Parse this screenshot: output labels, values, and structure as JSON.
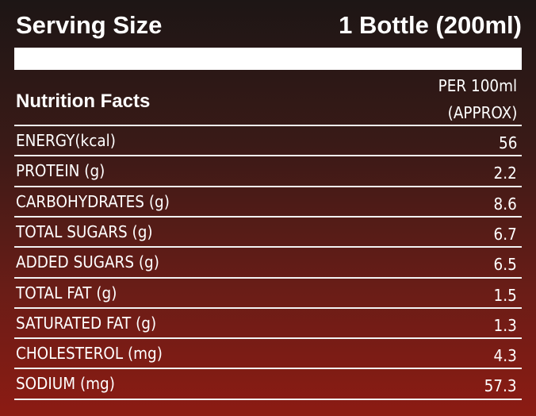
{
  "header": {
    "label": "Serving Size",
    "value": "1 Bottle (200ml)"
  },
  "table": {
    "title": "Nutrition Facts",
    "column_header": [
      "PER 100ml",
      "(APPROX)"
    ],
    "rows": [
      [
        "ENERGY(kcal)",
        "56"
      ],
      [
        "PROTEIN (g)",
        "2.2"
      ],
      [
        "CARBOHYDRATES (g)",
        "8.6"
      ],
      [
        "TOTAL SUGARS (g)",
        "6.7"
      ],
      [
        "ADDED SUGARS (g)",
        "6.5"
      ],
      [
        "TOTAL FAT (g)",
        "1.5"
      ],
      [
        "SATURATED FAT (g)",
        "1.3"
      ],
      [
        "CHOLESTEROL (mg)",
        "4.3"
      ],
      [
        "SODIUM (mg)",
        "57.3"
      ]
    ]
  }
}
